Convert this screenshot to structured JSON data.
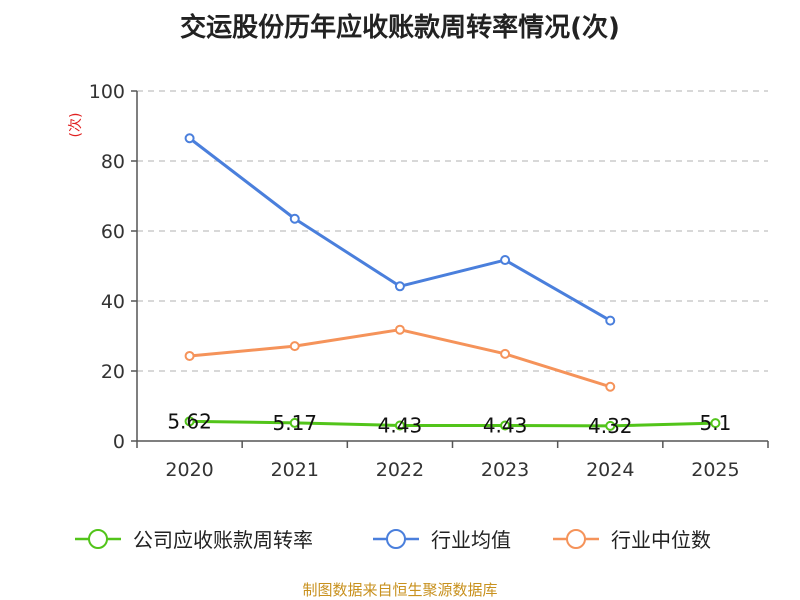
{
  "chart_data": {
    "type": "line",
    "title": "交运股份历年应收账款周转率情况(次)",
    "ylabel": "(次)",
    "xlabel": "",
    "categories": [
      "2020",
      "2021",
      "2022",
      "2023",
      "2024",
      "2025"
    ],
    "ylim": [
      0,
      100
    ],
    "yticks": [
      0,
      20,
      40,
      60,
      80,
      100
    ],
    "grid": true,
    "legend_position": "bottom",
    "series": [
      {
        "name": "公司应收账款周转率",
        "color": "#52c41a",
        "values": [
          5.62,
          5.17,
          4.43,
          4.43,
          4.32,
          5.1
        ],
        "labels": [
          "5.62",
          "5.17",
          "4.43",
          "4.43",
          "4.32",
          "5.1"
        ]
      },
      {
        "name": "行业均值",
        "color": "#4a7fdc",
        "values": [
          86.5,
          63.5,
          44.2,
          51.7,
          34.4,
          null
        ]
      },
      {
        "name": "行业中位数",
        "color": "#f5935a",
        "values": [
          24.3,
          27.1,
          31.8,
          24.9,
          15.5,
          null
        ]
      }
    ]
  },
  "source": "制图数据来自恒生聚源数据库"
}
